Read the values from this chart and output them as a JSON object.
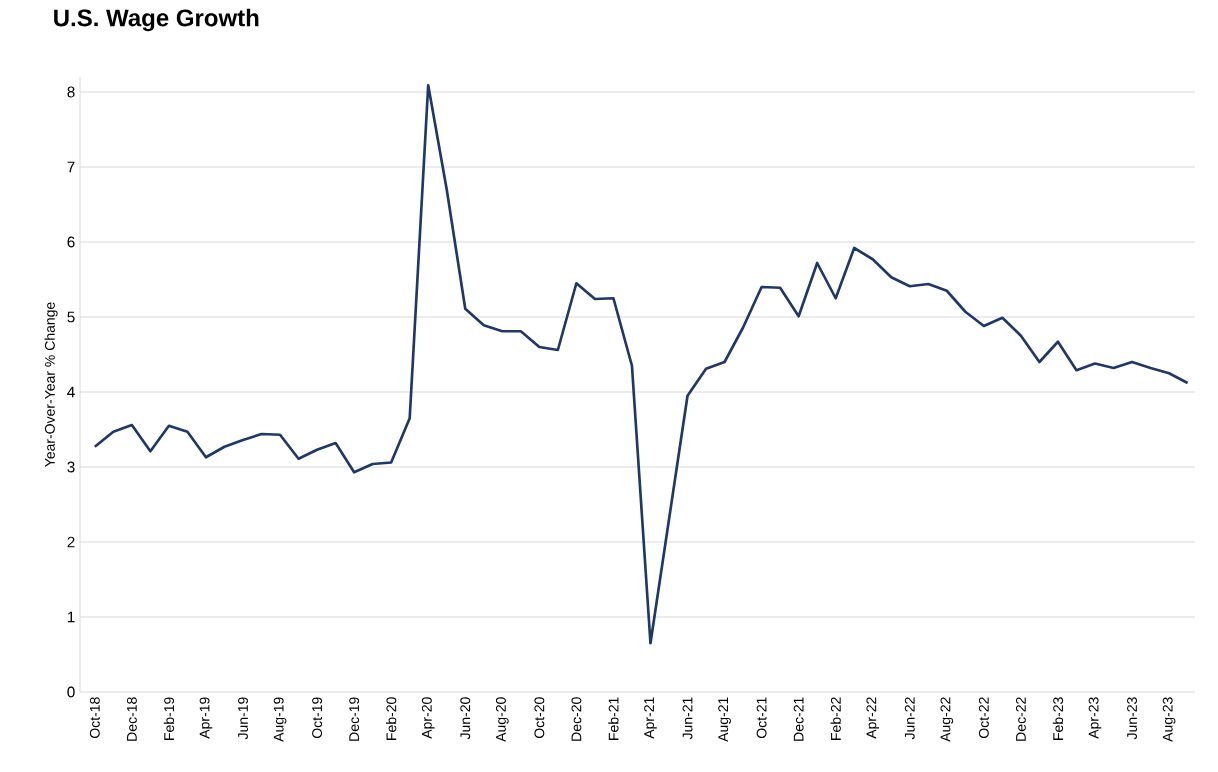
{
  "chart_data": {
    "type": "line",
    "title": "U.S. Wage Growth",
    "ylabel": "Year-Over-Year % Change",
    "categories": [
      "Oct-18",
      null,
      "Dec-18",
      null,
      "Feb-19",
      null,
      "Apr-19",
      null,
      "Jun-19",
      null,
      "Aug-19",
      null,
      "Oct-19",
      null,
      "Dec-19",
      null,
      "Feb-20",
      null,
      "Apr-20",
      null,
      "Jun-20",
      null,
      "Aug-20",
      null,
      "Oct-20",
      null,
      "Dec-20",
      null,
      "Feb-21",
      null,
      "Apr-21",
      null,
      "Jun-21",
      null,
      "Aug-21",
      null,
      "Oct-21",
      null,
      "Dec-21",
      null,
      "Feb-22",
      null,
      "Apr-22",
      null,
      "Jun-22",
      null,
      "Aug-22",
      null,
      "Oct-22",
      null,
      "Dec-22",
      null,
      "Feb-23",
      null,
      "Apr-23",
      null,
      "Jun-23",
      null,
      "Aug-23",
      null
    ],
    "values": [
      3.27,
      3.47,
      3.56,
      3.21,
      3.55,
      3.47,
      3.13,
      3.27,
      3.36,
      3.44,
      3.43,
      3.11,
      3.23,
      3.32,
      2.93,
      3.04,
      3.06,
      3.65,
      8.09,
      6.7,
      5.11,
      4.89,
      4.81,
      4.81,
      4.6,
      4.56,
      5.45,
      5.24,
      5.25,
      4.35,
      0.65,
      2.3,
      3.95,
      4.31,
      4.4,
      4.86,
      5.4,
      5.39,
      5.01,
      5.72,
      5.25,
      5.92,
      5.77,
      5.53,
      5.41,
      5.44,
      5.35,
      5.07,
      4.88,
      4.99,
      4.75,
      4.4,
      4.67,
      4.29,
      4.38,
      4.32,
      4.4,
      4.32,
      4.25,
      4.12
    ],
    "color": "#1f3864",
    "ylim": [
      0,
      8.2
    ],
    "yticks": [
      0,
      1,
      2,
      3,
      4,
      5,
      6,
      7,
      8
    ],
    "grid": "y",
    "marker": "none",
    "line_style": "solid"
  }
}
